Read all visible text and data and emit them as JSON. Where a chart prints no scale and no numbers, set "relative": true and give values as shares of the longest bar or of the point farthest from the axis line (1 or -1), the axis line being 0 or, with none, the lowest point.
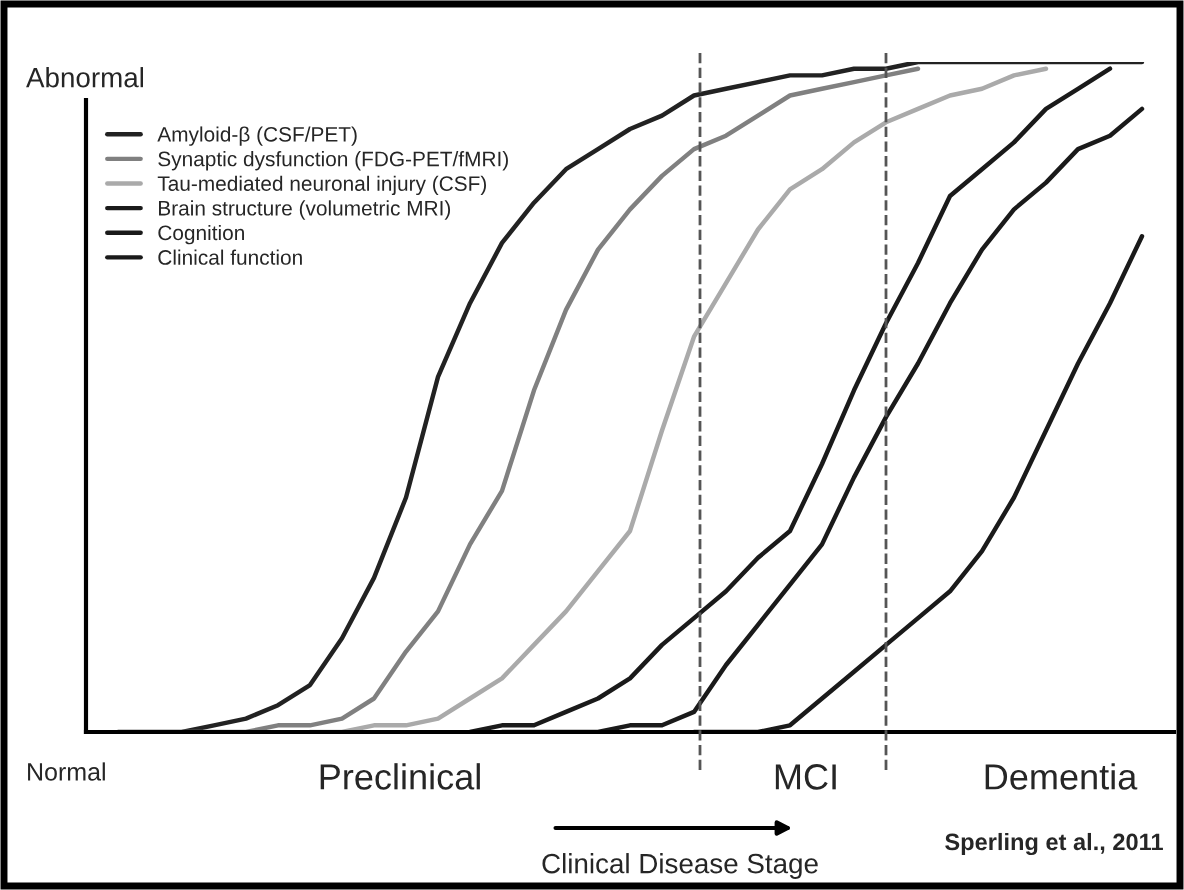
{
  "chart_data": {
    "type": "line",
    "relative": true,
    "categories": [
      null,
      null,
      null,
      null,
      null,
      null,
      null,
      null,
      null,
      null,
      null,
      null,
      null,
      null,
      null,
      null,
      null,
      null,
      null,
      null,
      null,
      null,
      null,
      null,
      null,
      null,
      null,
      null,
      null,
      null,
      null,
      null,
      null,
      null,
      null
    ],
    "series": [
      {
        "name": "Amyloid-β (CSF/PET)",
        "color": "#222222",
        "values": [
          null,
          0,
          0,
          0,
          0.01,
          0.02,
          0.04,
          0.07,
          0.14,
          0.23,
          0.35,
          0.53,
          0.64,
          0.73,
          0.79,
          0.84,
          0.87,
          0.9,
          0.92,
          0.95,
          0.96,
          0.97,
          0.98,
          0.98,
          0.99,
          0.99,
          1,
          1,
          1,
          1,
          1,
          1,
          1,
          1,
          null
        ]
      },
      {
        "name": "Synaptic dysfunction (FDG-PET/fMRI)",
        "color": "#808080",
        "values": [
          null,
          null,
          null,
          0,
          0,
          0,
          0.01,
          0.01,
          0.02,
          0.05,
          0.12,
          0.18,
          0.28,
          0.36,
          0.51,
          0.63,
          0.72,
          0.78,
          0.83,
          0.87,
          0.89,
          0.92,
          0.95,
          0.96,
          0.97,
          0.98,
          0.99,
          null,
          null,
          null,
          null,
          null,
          null,
          null,
          null
        ]
      },
      {
        "name": "Tau-mediated neuronal injury (CSF)",
        "color": "#aaaaaa",
        "values": [
          null,
          null,
          null,
          null,
          null,
          null,
          null,
          0,
          0,
          0.01,
          0.01,
          0.02,
          0.05,
          0.08,
          0.13,
          0.18,
          0.24,
          0.3,
          0.45,
          0.59,
          0.67,
          0.75,
          0.81,
          0.84,
          0.88,
          0.91,
          0.93,
          0.95,
          0.96,
          0.98,
          0.99,
          null,
          null,
          null,
          null
        ]
      },
      {
        "name": "Brain structure (volumetric MRI)",
        "color": "#1a1a1a",
        "values": [
          null,
          null,
          null,
          null,
          null,
          null,
          null,
          null,
          null,
          null,
          null,
          null,
          0,
          0.01,
          0.01,
          0.03,
          0.05,
          0.08,
          0.13,
          0.17,
          0.21,
          0.26,
          0.3,
          0.4,
          0.51,
          0.61,
          0.7,
          0.8,
          0.84,
          0.88,
          0.93,
          0.96,
          0.99,
          null,
          null
        ]
      },
      {
        "name": "Cognition",
        "color": "#1a1a1a",
        "values": [
          null,
          null,
          null,
          null,
          null,
          null,
          null,
          null,
          null,
          null,
          null,
          null,
          null,
          0,
          0,
          0,
          0,
          0.01,
          0.01,
          0.03,
          0.1,
          0.16,
          0.22,
          0.28,
          0.38,
          0.47,
          0.55,
          0.64,
          0.72,
          0.78,
          0.82,
          0.87,
          0.89,
          0.93,
          null
        ]
      },
      {
        "name": "Clinical function",
        "color": "#1a1a1a",
        "values": [
          null,
          null,
          null,
          null,
          null,
          null,
          null,
          null,
          null,
          null,
          null,
          null,
          null,
          null,
          null,
          null,
          null,
          null,
          null,
          0,
          0,
          0,
          0.01,
          0.05,
          0.09,
          0.13,
          0.17,
          0.21,
          0.27,
          0.35,
          0.45,
          0.55,
          0.64,
          0.74,
          null
        ]
      }
    ],
    "xlabel": "Clinical Disease Stage",
    "annotations": [
      "Abnormal",
      "Normal",
      "Preclinical",
      "MCI",
      "Dementia",
      "Sperling et al., 2011"
    ],
    "legend": "top left",
    "line_style": "solid",
    "marker": "none",
    "grid": false
  }
}
